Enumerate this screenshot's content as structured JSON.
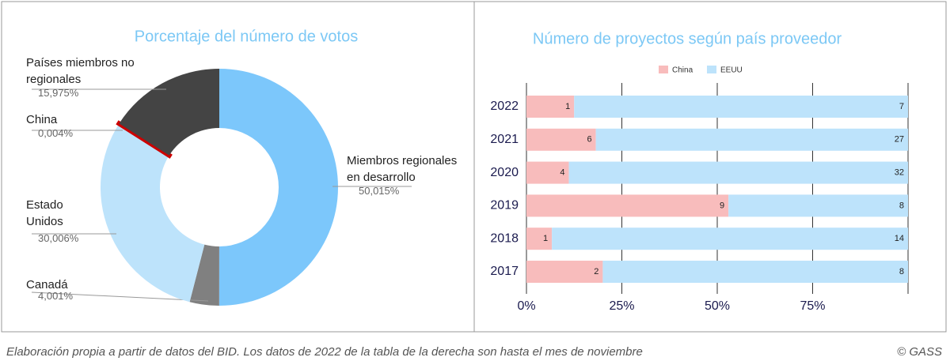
{
  "chart_data": [
    {
      "type": "donut",
      "title": "Porcentaje del número de votos",
      "categories": [
        "Miembros regionales en desarrollo",
        "Canadá",
        "Estado Unidos",
        "China",
        "Países miembros no regionales"
      ],
      "values": [
        50.015,
        4.001,
        30.006,
        0.004,
        15.975
      ],
      "value_labels": [
        "50,015%",
        "4,001%",
        "30,006%",
        "0,004%",
        "15,975%"
      ],
      "colors": [
        "#7cc7fb",
        "#808080",
        "#bde3fb",
        "#cc0000",
        "#444444"
      ]
    },
    {
      "type": "bar",
      "orientation": "horizontal",
      "stacking": "percent",
      "title": "Número de proyectos según país proveedor",
      "categories": [
        "2022",
        "2021",
        "2020",
        "2019",
        "2018",
        "2017"
      ],
      "series": [
        {
          "name": "China",
          "color": "#f8bcbc",
          "values": [
            1,
            6,
            4,
            9,
            1,
            2
          ]
        },
        {
          "name": "EEUU",
          "color": "#bde3fb",
          "values": [
            7,
            27,
            32,
            8,
            14,
            8
          ]
        }
      ],
      "xlim": [
        0,
        100
      ],
      "xticks": [
        {
          "value": 0,
          "label": "0%"
        },
        {
          "value": 25,
          "label": "25%"
        },
        {
          "value": 50,
          "label": "50%"
        },
        {
          "value": 75,
          "label": "75%"
        }
      ],
      "grid": true,
      "legend": "top"
    }
  ],
  "footer": {
    "note": "Elaboración propia a partir de datos del BID. Los datos de 2022 de la tabla de la derecha son hasta el mes de noviembre",
    "credit": "© GASS"
  }
}
